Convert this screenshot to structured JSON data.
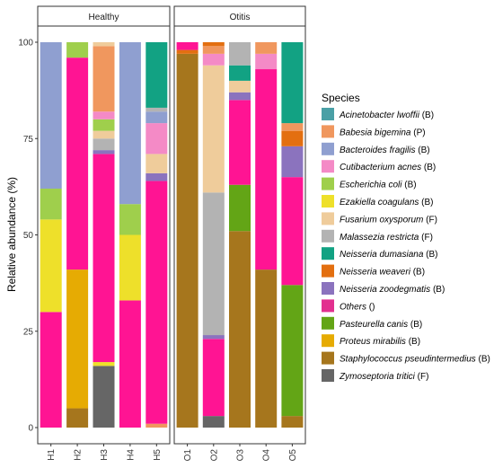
{
  "chart_data": {
    "type": "bar",
    "stacked": true,
    "ylabel": "Relative abundance (%)",
    "ylim": [
      0,
      100
    ],
    "yticks": [
      0,
      25,
      50,
      75,
      100
    ],
    "panels": [
      {
        "title": "Healthy",
        "categories": [
          "H1",
          "H2",
          "H3",
          "H4",
          "H5"
        ]
      },
      {
        "title": "Otitis",
        "categories": [
          "O1",
          "O2",
          "O3",
          "O4",
          "O5"
        ]
      }
    ],
    "legend_title": "Species",
    "legend_position": "right",
    "species": [
      {
        "name": "Acinetobacter lwoffii",
        "tag": "(B)",
        "color": "#4aa0a6"
      },
      {
        "name": "Babesia bigemina",
        "tag": "(P)",
        "color": "#f0975e"
      },
      {
        "name": "Bacteroides fragilis",
        "tag": "(B)",
        "color": "#8f9fd0"
      },
      {
        "name": "Cutibacterium acnes",
        "tag": "(B)",
        "color": "#f48ac6"
      },
      {
        "name": "Escherichia coli",
        "tag": "(B)",
        "color": "#9fcf4c"
      },
      {
        "name": "Ezakiella coagulans",
        "tag": "(B)",
        "color": "#eee02a"
      },
      {
        "name": "Fusarium oxysporum",
        "tag": "(F)",
        "color": "#efcc9b"
      },
      {
        "name": "Malassezia restricta",
        "tag": "(F)",
        "color": "#b3b3b3"
      },
      {
        "name": "Neisseria dumasiana",
        "tag": "(B)",
        "color": "#12a283"
      },
      {
        "name": "Neisseria weaveri",
        "tag": "(B)",
        "color": "#e36f10"
      },
      {
        "name": "Neisseria zoodegmatis",
        "tag": "(B)",
        "color": "#8b73be"
      },
      {
        "name": "Others",
        "tag": "()",
        "color": "#e2308f"
      },
      {
        "name": "Pasteurella canis",
        "tag": "(B)",
        "color": "#63a516"
      },
      {
        "name": "Proteus mirabilis",
        "tag": "(B)",
        "color": "#e6ab03"
      },
      {
        "name": "Staphylococcus pseudintermedius",
        "tag": "(B)",
        "color": "#a6761d"
      },
      {
        "name": "Zymoseptoria tritici",
        "tag": "(F)",
        "color": "#666666"
      }
    ],
    "others_color": "#ff1493",
    "samples": [
      {
        "sample": "H1",
        "segments": [
          {
            "species": "Others",
            "value": 30
          },
          {
            "species": "Ezakiella coagulans",
            "value": 24
          },
          {
            "species": "Escherichia coli",
            "value": 8
          },
          {
            "species": "Bacteroides fragilis",
            "value": 38
          }
        ]
      },
      {
        "sample": "H2",
        "segments": [
          {
            "species": "Staphylococcus pseudintermedius",
            "value": 5
          },
          {
            "species": "Proteus mirabilis",
            "value": 36
          },
          {
            "species": "Others",
            "value": 55
          },
          {
            "species": "Escherichia coli",
            "value": 4
          }
        ]
      },
      {
        "sample": "H3",
        "segments": [
          {
            "species": "Zymoseptoria tritici",
            "value": 16
          },
          {
            "species": "Ezakiella coagulans",
            "value": 1
          },
          {
            "species": "Others",
            "value": 54
          },
          {
            "species": "Neisseria zoodegmatis",
            "value": 1
          },
          {
            "species": "Malassezia restricta",
            "value": 3
          },
          {
            "species": "Fusarium oxysporum",
            "value": 2
          },
          {
            "species": "Escherichia coli",
            "value": 3
          },
          {
            "species": "Cutibacterium acnes",
            "value": 2
          },
          {
            "species": "Babesia bigemina",
            "value": 17
          },
          {
            "species": "Fusarium oxysporum",
            "value": 1
          }
        ]
      },
      {
        "sample": "H4",
        "segments": [
          {
            "species": "Others",
            "value": 33
          },
          {
            "species": "Ezakiella coagulans",
            "value": 17
          },
          {
            "species": "Escherichia coli",
            "value": 8
          },
          {
            "species": "Bacteroides fragilis",
            "value": 42
          }
        ]
      },
      {
        "sample": "H5",
        "segments": [
          {
            "species": "Babesia bigemina",
            "value": 1
          },
          {
            "species": "Others",
            "value": 63
          },
          {
            "species": "Neisseria zoodegmatis",
            "value": 2
          },
          {
            "species": "Fusarium oxysporum",
            "value": 5
          },
          {
            "species": "Cutibacterium acnes",
            "value": 8
          },
          {
            "species": "Bacteroides fragilis",
            "value": 3
          },
          {
            "species": "Malassezia restricta",
            "value": 1
          },
          {
            "species": "Neisseria dumasiana",
            "value": 17
          }
        ]
      },
      {
        "sample": "O1",
        "segments": [
          {
            "species": "Staphylococcus pseudintermedius",
            "value": 97
          },
          {
            "species": "Neisseria weaveri",
            "value": 1
          },
          {
            "species": "Others",
            "value": 2
          }
        ]
      },
      {
        "sample": "O2",
        "segments": [
          {
            "species": "Zymoseptoria tritici",
            "value": 3
          },
          {
            "species": "Others",
            "value": 20
          },
          {
            "species": "Neisseria zoodegmatis",
            "value": 1
          },
          {
            "species": "Malassezia restricta",
            "value": 37
          },
          {
            "species": "Fusarium oxysporum",
            "value": 33
          },
          {
            "species": "Cutibacterium acnes",
            "value": 3
          },
          {
            "species": "Babesia bigemina",
            "value": 2
          },
          {
            "species": "Neisseria weaveri",
            "value": 1
          }
        ]
      },
      {
        "sample": "O3",
        "segments": [
          {
            "species": "Staphylococcus pseudintermedius",
            "value": 51
          },
          {
            "species": "Pasteurella canis",
            "value": 12
          },
          {
            "species": "Others",
            "value": 22
          },
          {
            "species": "Neisseria zoodegmatis",
            "value": 2
          },
          {
            "species": "Fusarium oxysporum",
            "value": 3
          },
          {
            "species": "Neisseria dumasiana",
            "value": 4
          },
          {
            "species": "Malassezia restricta",
            "value": 6
          }
        ]
      },
      {
        "sample": "O4",
        "segments": [
          {
            "species": "Staphylococcus pseudintermedius",
            "value": 41
          },
          {
            "species": "Others",
            "value": 52
          },
          {
            "species": "Cutibacterium acnes",
            "value": 4
          },
          {
            "species": "Babesia bigemina",
            "value": 3
          }
        ]
      },
      {
        "sample": "O5",
        "segments": [
          {
            "species": "Staphylococcus pseudintermedius",
            "value": 3
          },
          {
            "species": "Pasteurella canis",
            "value": 34
          },
          {
            "species": "Others",
            "value": 28
          },
          {
            "species": "Neisseria zoodegmatis",
            "value": 8
          },
          {
            "species": "Neisseria weaveri",
            "value": 4
          },
          {
            "species": "Babesia bigemina",
            "value": 2
          },
          {
            "species": "Neisseria dumasiana",
            "value": 21
          }
        ]
      }
    ]
  }
}
